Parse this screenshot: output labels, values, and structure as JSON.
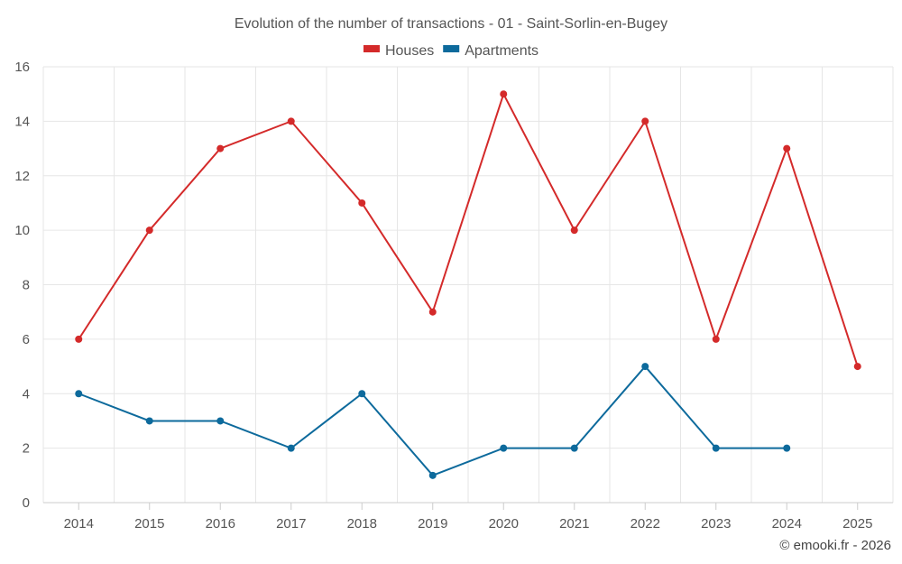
{
  "chart_data": {
    "type": "line",
    "title": "Evolution of the number of transactions - 01 - Saint-Sorlin-en-Bugey",
    "categories": [
      "2014",
      "2015",
      "2016",
      "2017",
      "2018",
      "2019",
      "2020",
      "2021",
      "2022",
      "2023",
      "2024",
      "2025"
    ],
    "series": [
      {
        "name": "Houses",
        "color": "#d42a2a",
        "values": [
          6,
          10,
          13,
          14,
          11,
          7,
          15,
          10,
          14,
          6,
          13,
          5
        ]
      },
      {
        "name": "Apartments",
        "color": "#0d6a9c",
        "values": [
          4,
          3,
          3,
          2,
          4,
          1,
          2,
          2,
          5,
          2,
          2,
          null
        ]
      }
    ],
    "xlabel": "",
    "ylabel": "",
    "ylim": [
      0,
      16
    ],
    "yticks": [
      0,
      2,
      4,
      6,
      8,
      10,
      12,
      14,
      16
    ],
    "grid": true,
    "legend": "top-center",
    "credit": "© emooki.fr - 2026"
  }
}
